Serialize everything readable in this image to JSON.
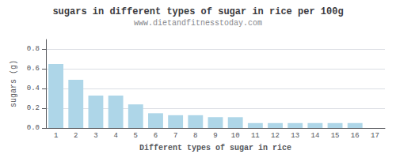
{
  "chart_data": {
    "type": "bar",
    "title": "sugars in different types of sugar in rice per 100g",
    "subtitle": "www.dietandfitnesstoday.com",
    "xlabel": "Different types of sugar in rice",
    "ylabel": "sugars (g)",
    "categories": [
      1,
      2,
      3,
      4,
      5,
      6,
      7,
      8,
      9,
      10,
      11,
      12,
      13,
      14,
      15,
      16,
      17
    ],
    "values": [
      0.65,
      0.49,
      0.33,
      0.33,
      0.24,
      0.15,
      0.13,
      0.13,
      0.11,
      0.11,
      0.05,
      0.05,
      0.05,
      0.05,
      0.05,
      0.05,
      0.0
    ],
    "color": "#aed6e8",
    "ylim": [
      0,
      0.9
    ],
    "yticks": [
      {
        "value": 0,
        "label": "0.0"
      },
      0.2,
      0.4,
      0.6,
      0.8
    ],
    "grid": true
  }
}
